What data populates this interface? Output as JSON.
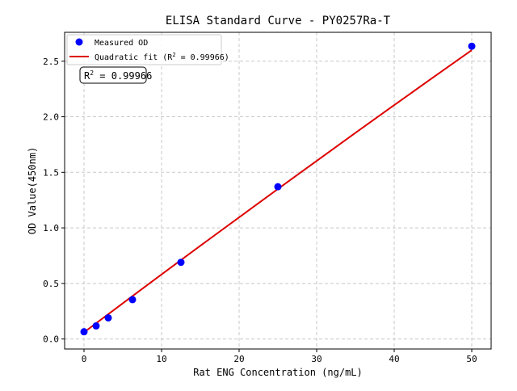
{
  "chart_data": {
    "type": "scatter",
    "title": "ELISA Standard Curve - PY0257Ra-T",
    "xlabel": "Rat ENG Concentration (ng/mL)",
    "ylabel": "OD Value(450nm)",
    "xlim": [
      -2.5,
      52.5
    ],
    "ylim": [
      -0.09,
      2.76
    ],
    "xticks": [
      0,
      10,
      20,
      30,
      40,
      50
    ],
    "xtick_labels": [
      "0",
      "10",
      "20",
      "30",
      "40",
      "50"
    ],
    "yticks": [
      0,
      0.5,
      1.0,
      1.5,
      2.0,
      2.5
    ],
    "ytick_labels": [
      "0.0",
      "0.5",
      "1.0",
      "1.5",
      "2.0",
      "2.5"
    ],
    "grid": true,
    "legend_placement": "top-left",
    "series": [
      {
        "name": "Measured OD",
        "kind": "scatter",
        "color": "#0000ff",
        "x": [
          0,
          1.5625,
          3.125,
          6.25,
          12.5,
          25,
          50
        ],
        "y": [
          0.065,
          0.118,
          0.19,
          0.354,
          0.69,
          1.37,
          2.635
        ]
      },
      {
        "name": "Quadratic fit (R² = 0.99966)",
        "kind": "line",
        "color": "#dd0000",
        "x": [
          0,
          5,
          10,
          15,
          20,
          25,
          30,
          35,
          40,
          45,
          50
        ],
        "y": [
          0.06,
          0.321,
          0.581,
          0.839,
          1.095,
          1.35,
          1.603,
          1.855,
          2.105,
          2.353,
          2.6
        ]
      }
    ],
    "annotation": {
      "prefix": "R",
      "sup": "2",
      "suffix": " = 0.99966"
    },
    "legend": {
      "entries": [
        {
          "label": "Measured OD"
        },
        {
          "label_prefix": "Quadratic fit (R",
          "label_sup": "2",
          "label_suffix": " = 0.99966)"
        }
      ]
    }
  }
}
